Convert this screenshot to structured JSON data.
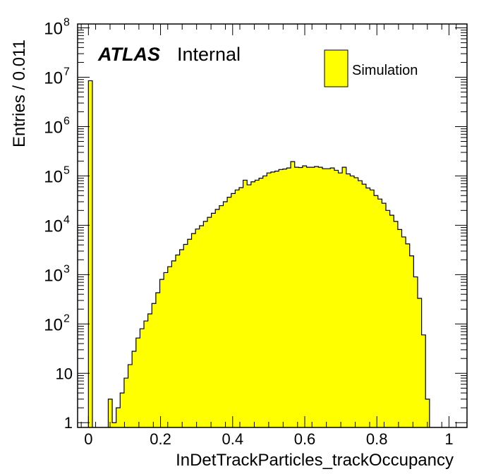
{
  "chart_data": {
    "type": "histogram",
    "x": [
      0.0,
      0.055,
      0.066,
      0.077,
      0.088,
      0.099,
      0.11,
      0.121,
      0.132,
      0.143,
      0.154,
      0.165,
      0.176,
      0.187,
      0.198,
      0.209,
      0.22,
      0.231,
      0.242,
      0.253,
      0.264,
      0.275,
      0.286,
      0.297,
      0.308,
      0.319,
      0.33,
      0.341,
      0.352,
      0.363,
      0.374,
      0.385,
      0.396,
      0.407,
      0.418,
      0.429,
      0.44,
      0.451,
      0.462,
      0.473,
      0.484,
      0.495,
      0.506,
      0.517,
      0.528,
      0.539,
      0.55,
      0.561,
      0.572,
      0.583,
      0.594,
      0.605,
      0.616,
      0.627,
      0.638,
      0.649,
      0.66,
      0.671,
      0.682,
      0.693,
      0.704,
      0.715,
      0.726,
      0.737,
      0.748,
      0.759,
      0.77,
      0.781,
      0.792,
      0.803,
      0.814,
      0.825,
      0.836,
      0.847,
      0.858,
      0.869,
      0.88,
      0.891,
      0.902,
      0.913,
      0.924,
      0.935
    ],
    "values": [
      8500000,
      3,
      1,
      2,
      4,
      8,
      15,
      28,
      52,
      80,
      115,
      160,
      260,
      430,
      800,
      1100,
      1450,
      1900,
      2500,
      3200,
      4100,
      5200,
      6800,
      8400,
      9800,
      12000,
      14500,
      17500,
      21000,
      25000,
      30000,
      37000,
      44000,
      52000,
      58000,
      82000,
      66000,
      76000,
      82000,
      90000,
      100000,
      115000,
      120000,
      125000,
      135000,
      138000,
      145000,
      195000,
      150000,
      148000,
      160000,
      150000,
      150000,
      155000,
      150000,
      140000,
      140000,
      145000,
      130000,
      115000,
      150000,
      110000,
      100000,
      92000,
      80000,
      68000,
      57000,
      52000,
      40000,
      34000,
      28000,
      20000,
      16000,
      12000,
      8200,
      5800,
      4200,
      2400,
      900,
      330,
      60,
      3
    ],
    "bin_width": 0.011,
    "xlim": [
      -0.03,
      1.05
    ],
    "ylim": [
      0.8,
      120000000
    ],
    "log_y": true,
    "xlabel": "InDetTrackParticles_trackOccupancy",
    "ylabel": "Entries / 0.011",
    "x_ticks": [
      "0",
      "0.2",
      "0.4",
      "0.6",
      "0.8",
      "1"
    ],
    "y_ticks": [
      "1",
      "10",
      "10^2",
      "10^3",
      "10^4",
      "10^5",
      "10^6",
      "10^7",
      "10^8"
    ],
    "legend": {
      "entries": [
        "Simulation"
      ],
      "placement": "top-right"
    },
    "fill_color": "#ffff00",
    "line_color": "#000000"
  },
  "label": {
    "atlas": "ATLAS",
    "status": "Internal"
  }
}
